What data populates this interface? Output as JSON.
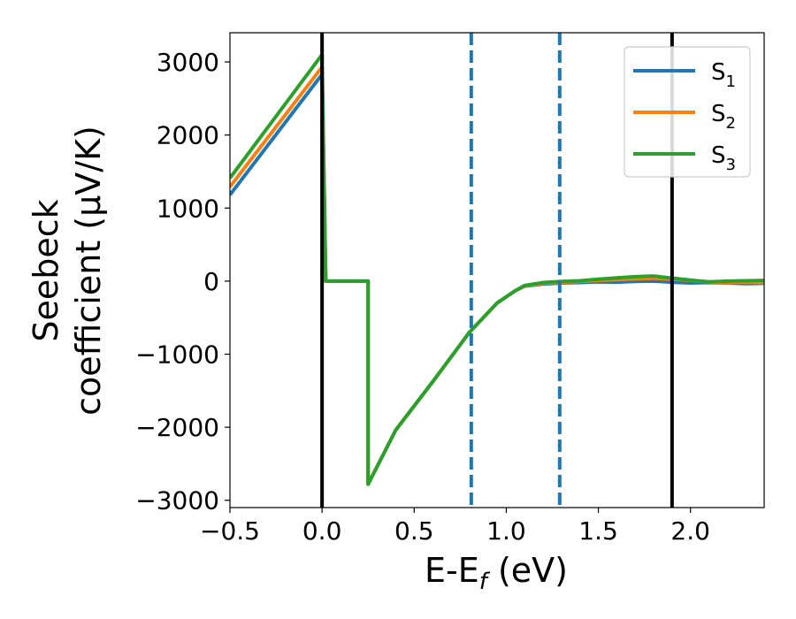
{
  "chart_data": {
    "type": "line",
    "xlabel": {
      "main": "E-E",
      "sub": "f",
      "suffix": " (eV)"
    },
    "ylabel": {
      "line1": "Seebeck",
      "line2": "coefficient  (μV/K)"
    },
    "xlim": [
      -0.5,
      2.4
    ],
    "ylim": [
      -3100,
      3400
    ],
    "x_ticks": [
      -0.5,
      0.0,
      0.5,
      1.0,
      1.5,
      2.0
    ],
    "x_tick_labels": [
      "−0.5",
      "0.0",
      "0.5",
      "1.0",
      "1.5",
      "2.0"
    ],
    "y_ticks": [
      -3000,
      -2000,
      -1000,
      0,
      1000,
      2000,
      3000
    ],
    "y_tick_labels": [
      "−3000",
      "−2000",
      "−1000",
      "0",
      "1000",
      "2000",
      "3000"
    ],
    "grid": false,
    "legend_position": "top-right",
    "vlines": [
      {
        "x": 0.0,
        "color": "#000000",
        "style": "solid"
      },
      {
        "x": 1.9,
        "color": "#000000",
        "style": "solid"
      },
      {
        "x": 0.81,
        "color": "#1f77b4",
        "style": "dashed"
      },
      {
        "x": 1.29,
        "color": "#1f77b4",
        "style": "dashed"
      }
    ],
    "series": [
      {
        "name": "S1",
        "label_main": "S",
        "label_sub": "1",
        "color": "#1f77b4",
        "x": [
          -0.5,
          0.0,
          0.02,
          0.25,
          0.25,
          0.4,
          0.6,
          0.8,
          0.95,
          1.05,
          1.1,
          1.2,
          1.3,
          1.4,
          1.5,
          1.6,
          1.7,
          1.8,
          1.9,
          2.0,
          2.1,
          2.2,
          2.3,
          2.4
        ],
        "y": [
          1180,
          2830,
          0,
          0,
          -2780,
          -2040,
          -1380,
          -700,
          -300,
          -130,
          -70,
          -40,
          -25,
          -20,
          -10,
          -15,
          -5,
          0,
          -15,
          -25,
          -20,
          -25,
          -35,
          -30
        ]
      },
      {
        "name": "S2",
        "label_main": "S",
        "label_sub": "2",
        "color": "#ff7f0e",
        "x": [
          -0.5,
          0.0,
          0.02,
          0.25,
          0.25,
          0.4,
          0.6,
          0.8,
          0.95,
          1.05,
          1.1,
          1.2,
          1.3,
          1.4,
          1.5,
          1.6,
          1.7,
          1.8,
          1.9,
          2.0,
          2.1,
          2.2,
          2.3,
          2.4
        ],
        "y": [
          1290,
          2930,
          0,
          0,
          -2780,
          -2040,
          -1380,
          -700,
          -300,
          -130,
          -65,
          -30,
          -15,
          -5,
          10,
          20,
          30,
          40,
          25,
          10,
          -10,
          -20,
          -15,
          -20
        ]
      },
      {
        "name": "S3",
        "label_main": "S",
        "label_sub": "3",
        "color": "#2ca02c",
        "x": [
          -0.5,
          0.0,
          0.02,
          0.25,
          0.25,
          0.4,
          0.6,
          0.8,
          0.95,
          1.05,
          1.1,
          1.2,
          1.3,
          1.4,
          1.5,
          1.6,
          1.7,
          1.8,
          1.9,
          2.0,
          2.1,
          2.2,
          2.3,
          2.4
        ],
        "y": [
          1410,
          3100,
          0,
          0,
          -2780,
          -2040,
          -1380,
          -700,
          -300,
          -130,
          -60,
          -20,
          -5,
          5,
          25,
          45,
          60,
          70,
          40,
          15,
          -10,
          0,
          5,
          10
        ]
      }
    ]
  }
}
